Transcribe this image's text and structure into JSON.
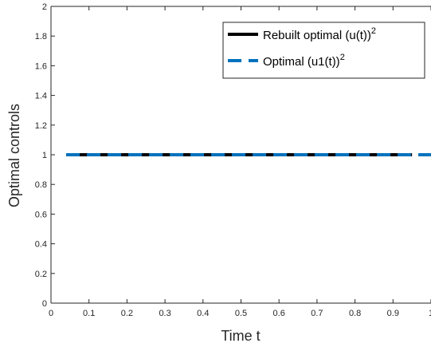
{
  "chart_data": {
    "type": "line",
    "xlabel": "Time t",
    "ylabel": "Optimal controls",
    "xlim": [
      0,
      1
    ],
    "ylim": [
      0,
      2
    ],
    "x_ticks": [
      0,
      0.1,
      0.2,
      0.3,
      0.4,
      0.5,
      0.6,
      0.7,
      0.8,
      0.9,
      1
    ],
    "x_tick_labels": [
      "0",
      "0.1",
      "0.2",
      "0.3",
      "0.4",
      "0.5",
      "0.6",
      "0.7",
      "0.8",
      "0.9",
      "1"
    ],
    "y_ticks": [
      0,
      0.2,
      0.4,
      0.6,
      0.8,
      1,
      1.2,
      1.4,
      1.6,
      1.8,
      2
    ],
    "y_tick_labels": [
      "0",
      "0.2",
      "0.4",
      "0.6",
      "0.8",
      "1",
      "1.2",
      "1.4",
      "1.6",
      "1.8",
      "2"
    ],
    "grid": false,
    "legend_position": "top-right",
    "series": [
      {
        "name": "Rebuilt optimal (u(t))",
        "name_superscript": "2",
        "color": "#000000",
        "style": "solid",
        "x": [
          0.04,
          0.95
        ],
        "y": [
          1,
          1
        ]
      },
      {
        "name": "Optimal (u1(t))",
        "name_superscript": "2",
        "color": "#0072BD",
        "style": "dashed",
        "x": [
          0.04,
          1
        ],
        "y": [
          1,
          1
        ]
      }
    ]
  }
}
